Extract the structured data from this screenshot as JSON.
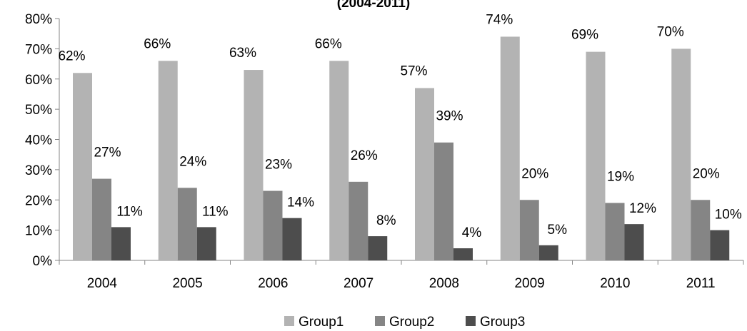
{
  "chart_data": {
    "type": "bar",
    "title": "(2004-2011)",
    "xlabel": "",
    "ylabel": "",
    "categories": [
      "2004",
      "2005",
      "2006",
      "2007",
      "2008",
      "2009",
      "2010",
      "2011"
    ],
    "series": [
      {
        "name": "Group1",
        "color": "#b3b3b3",
        "values": [
          62,
          66,
          63,
          66,
          57,
          74,
          69,
          70
        ],
        "labels": [
          "62%",
          "66%",
          "63%",
          "66%",
          "57%",
          "74%",
          "69%",
          "70%"
        ]
      },
      {
        "name": "Group2",
        "color": "#858585",
        "values": [
          27,
          24,
          23,
          26,
          39,
          20,
          19,
          20
        ],
        "labels": [
          "27%",
          "24%",
          "23%",
          "26%",
          "39%",
          "20%",
          "19%",
          "20%"
        ]
      },
      {
        "name": "Group3",
        "color": "#4d4d4d",
        "values": [
          11,
          11,
          14,
          8,
          4,
          5,
          12,
          10
        ],
        "labels": [
          "11%",
          "11%",
          "14%",
          "8%",
          "4%",
          "5%",
          "12%",
          "10%"
        ]
      }
    ],
    "ylim": [
      0,
      80
    ],
    "yticks": [
      0,
      10,
      20,
      30,
      40,
      50,
      60,
      70,
      80
    ],
    "ytick_labels": [
      "0%",
      "10%",
      "20%",
      "30%",
      "40%",
      "50%",
      "60%",
      "70%",
      "80%"
    ],
    "grid": false,
    "legend_position": "bottom"
  }
}
